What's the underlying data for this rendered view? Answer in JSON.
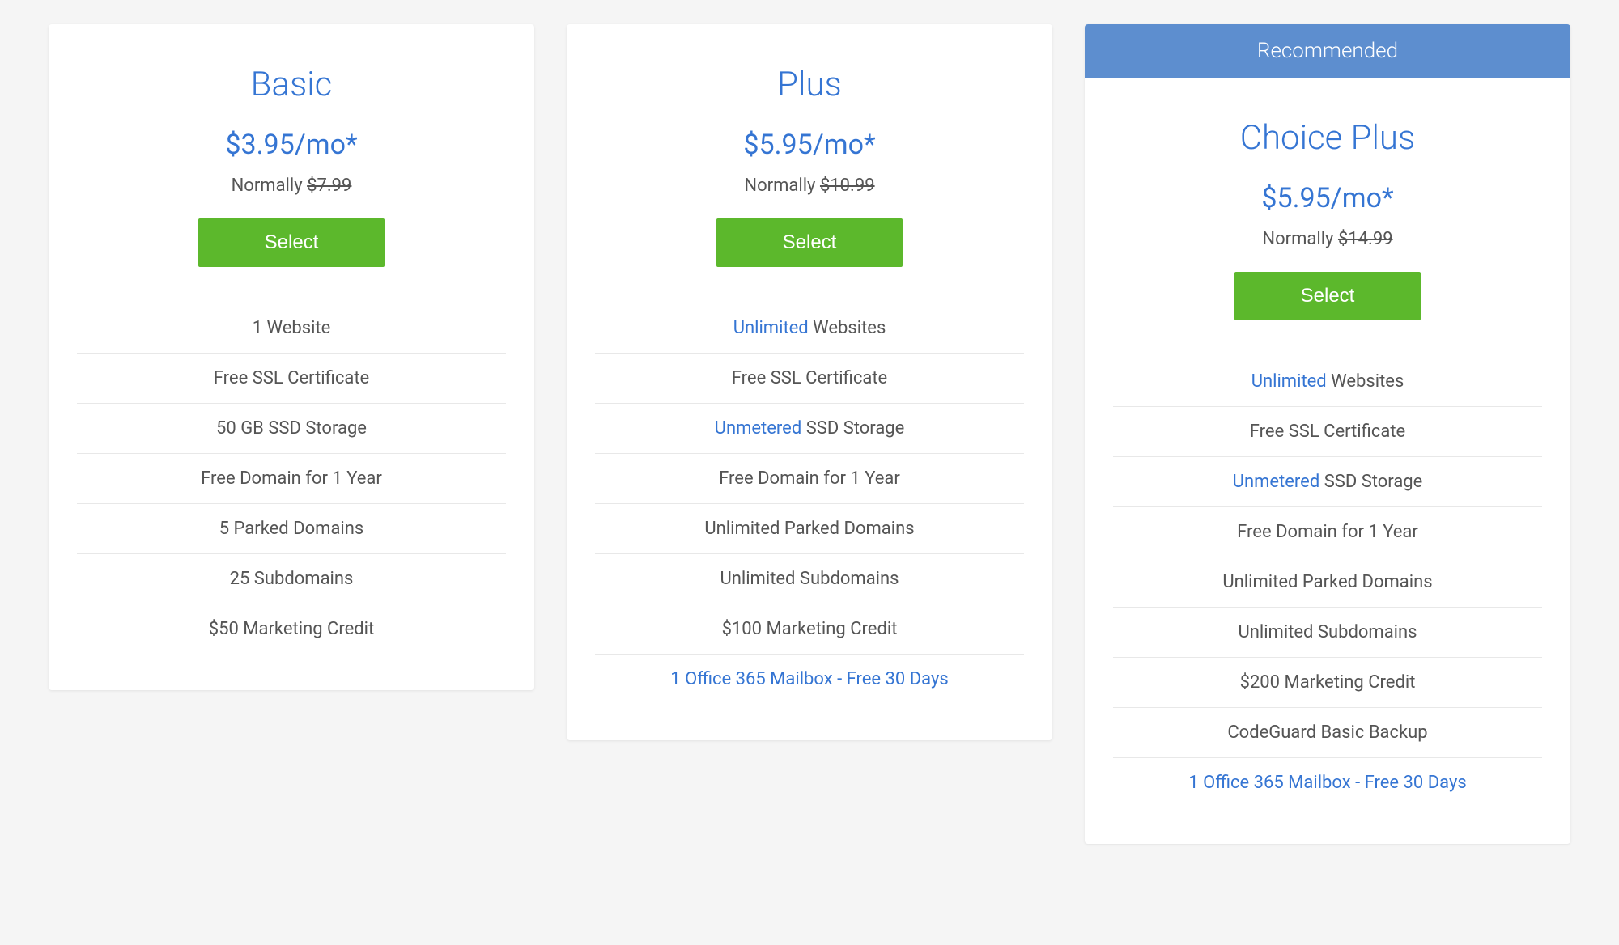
{
  "colors": {
    "primary_blue": "#3575d3",
    "banner_blue": "#5d8ecf",
    "button_green": "#5cb82c",
    "text_gray": "#555555",
    "bg_gray": "#f5f5f5",
    "card_white": "#ffffff",
    "border_gray": "#e8e8e8"
  },
  "recommended_label": "Recommended",
  "select_label": "Select",
  "normally_label": "Normally",
  "plans": [
    {
      "id": "basic",
      "name": "Basic",
      "price": "$3.95/mo*",
      "normal_price": "$7.99",
      "recommended": false,
      "features": [
        {
          "highlight": null,
          "text": "1 Website",
          "all_highlight": false
        },
        {
          "highlight": null,
          "text": "Free SSL Certificate",
          "all_highlight": false
        },
        {
          "highlight": null,
          "text": "50 GB SSD Storage",
          "all_highlight": false
        },
        {
          "highlight": null,
          "text": "Free Domain for 1 Year",
          "all_highlight": false
        },
        {
          "highlight": null,
          "text": "5 Parked Domains",
          "all_highlight": false
        },
        {
          "highlight": null,
          "text": "25 Subdomains",
          "all_highlight": false
        },
        {
          "highlight": null,
          "text": "$50 Marketing Credit",
          "all_highlight": false
        }
      ]
    },
    {
      "id": "plus",
      "name": "Plus",
      "price": "$5.95/mo*",
      "normal_price": "$10.99",
      "recommended": false,
      "features": [
        {
          "highlight": "Unlimited",
          "text": " Websites",
          "all_highlight": false
        },
        {
          "highlight": null,
          "text": "Free SSL Certificate",
          "all_highlight": false
        },
        {
          "highlight": "Unmetered",
          "text": " SSD Storage",
          "all_highlight": false
        },
        {
          "highlight": null,
          "text": "Free Domain for 1 Year",
          "all_highlight": false
        },
        {
          "highlight": null,
          "text": "Unlimited Parked Domains",
          "all_highlight": false
        },
        {
          "highlight": null,
          "text": "Unlimited Subdomains",
          "all_highlight": false
        },
        {
          "highlight": null,
          "text": "$100 Marketing Credit",
          "all_highlight": false
        },
        {
          "highlight": null,
          "text": "1 Office 365 Mailbox - Free 30 Days",
          "all_highlight": true
        }
      ]
    },
    {
      "id": "choice-plus",
      "name": "Choice Plus",
      "price": "$5.95/mo*",
      "normal_price": "$14.99",
      "recommended": true,
      "features": [
        {
          "highlight": "Unlimited",
          "text": " Websites",
          "all_highlight": false
        },
        {
          "highlight": null,
          "text": "Free SSL Certificate",
          "all_highlight": false
        },
        {
          "highlight": "Unmetered",
          "text": " SSD Storage",
          "all_highlight": false
        },
        {
          "highlight": null,
          "text": "Free Domain for 1 Year",
          "all_highlight": false
        },
        {
          "highlight": null,
          "text": "Unlimited Parked Domains",
          "all_highlight": false
        },
        {
          "highlight": null,
          "text": "Unlimited Subdomains",
          "all_highlight": false
        },
        {
          "highlight": null,
          "text": "$200 Marketing Credit",
          "all_highlight": false
        },
        {
          "highlight": null,
          "text": "CodeGuard Basic Backup",
          "all_highlight": false
        },
        {
          "highlight": null,
          "text": "1 Office 365 Mailbox - Free 30 Days",
          "all_highlight": true
        }
      ]
    }
  ]
}
